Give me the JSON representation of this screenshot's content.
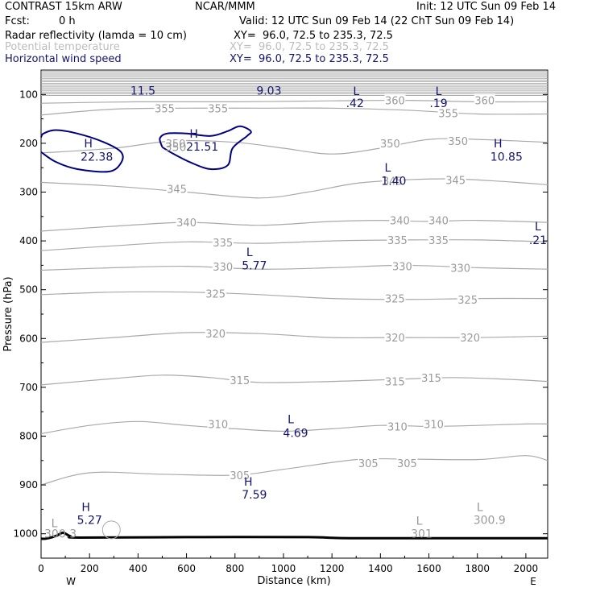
{
  "header": {
    "model": "CONTRAST 15km ARW",
    "center": "NCAR/MMM",
    "init": "Init: 12 UTC Sun 09 Feb 14",
    "fcst_label": "Fcst:",
    "fcst_value": "0 h",
    "valid": "Valid: 12 UTC Sun 09 Feb 14 (22 ChT Sun 09 Feb 14)"
  },
  "fields": [
    {
      "name": "Radar reflectivity (lamda = 10 cm)",
      "xy": "XY=  96.0, 72.5 to 235.3, 72.5",
      "color": "#000000"
    },
    {
      "name": "Potential temperature",
      "xy": "XY=  96.0, 72.5 to 235.3, 72.5",
      "color": "#bdbdbd"
    },
    {
      "name": "Horizontal wind speed",
      "xy": "XY=  96.0, 72.5 to 235.3, 72.5",
      "color": "#14146e"
    }
  ],
  "colors": {
    "theta": "#a9a9a9",
    "theta_label": "#9a9a9a",
    "wind": "#14146e",
    "reflectivity": "#000080",
    "axis": "#000000"
  },
  "chart_data": {
    "type": "cross-section",
    "xlabel": "Distance (km)",
    "ylabel": "Pressure (hPa)",
    "xlim": [
      0,
      2090
    ],
    "ylim": [
      1050,
      50
    ],
    "x_ticks": [
      0,
      200,
      400,
      600,
      800,
      1000,
      1200,
      1400,
      1600,
      1800,
      2000
    ],
    "y_ticks": [
      100,
      200,
      300,
      400,
      500,
      600,
      700,
      800,
      900,
      1000
    ],
    "end_labels": {
      "left": "W",
      "right": "E"
    },
    "theta_contours": [
      {
        "value": 305,
        "points": [
          [
            0,
            900
          ],
          [
            200,
            875
          ],
          [
            500,
            878
          ],
          [
            800,
            880
          ],
          [
            1000,
            868
          ],
          [
            1300,
            848
          ],
          [
            1500,
            847
          ],
          [
            1800,
            848
          ],
          [
            2000,
            840
          ],
          [
            2090,
            850
          ]
        ],
        "labels": [
          {
            "text": "305",
            "x": 820,
            "p": 880
          },
          {
            "text": "305",
            "x": 1350,
            "p": 855
          },
          {
            "text": "305",
            "x": 1510,
            "p": 855
          }
        ]
      },
      {
        "value": 310,
        "points": [
          [
            0,
            795
          ],
          [
            200,
            778
          ],
          [
            400,
            770
          ],
          [
            600,
            778
          ],
          [
            800,
            785
          ],
          [
            1000,
            790
          ],
          [
            1200,
            785
          ],
          [
            1400,
            778
          ],
          [
            1600,
            780
          ],
          [
            1800,
            778
          ],
          [
            2000,
            775
          ],
          [
            2090,
            775
          ]
        ],
        "labels": [
          {
            "text": "310",
            "x": 730,
            "p": 775
          },
          {
            "text": "310",
            "x": 1470,
            "p": 780
          },
          {
            "text": "310",
            "x": 1620,
            "p": 775
          }
        ]
      },
      {
        "value": 315,
        "points": [
          [
            0,
            695
          ],
          [
            300,
            682
          ],
          [
            500,
            675
          ],
          [
            700,
            680
          ],
          [
            900,
            690
          ],
          [
            1200,
            688
          ],
          [
            1500,
            683
          ],
          [
            1700,
            680
          ],
          [
            1900,
            683
          ],
          [
            2090,
            688
          ]
        ],
        "labels": [
          {
            "text": "315",
            "x": 820,
            "p": 685
          },
          {
            "text": "315",
            "x": 1460,
            "p": 688
          },
          {
            "text": "315",
            "x": 1610,
            "p": 680
          }
        ]
      },
      {
        "value": 320,
        "points": [
          [
            0,
            608
          ],
          [
            300,
            598
          ],
          [
            600,
            588
          ],
          [
            900,
            590
          ],
          [
            1200,
            598
          ],
          [
            1500,
            598
          ],
          [
            1800,
            598
          ],
          [
            2090,
            595
          ]
        ],
        "labels": [
          {
            "text": "320",
            "x": 720,
            "p": 590
          },
          {
            "text": "320",
            "x": 1460,
            "p": 598
          },
          {
            "text": "320",
            "x": 1770,
            "p": 598
          }
        ]
      },
      {
        "value": 325,
        "points": [
          [
            0,
            510
          ],
          [
            300,
            505
          ],
          [
            600,
            505
          ],
          [
            900,
            510
          ],
          [
            1200,
            518
          ],
          [
            1500,
            520
          ],
          [
            1800,
            518
          ],
          [
            2090,
            518
          ]
        ],
        "labels": [
          {
            "text": "325",
            "x": 720,
            "p": 508
          },
          {
            "text": "325",
            "x": 1460,
            "p": 518
          },
          {
            "text": "325",
            "x": 1760,
            "p": 520
          }
        ]
      },
      {
        "value": 330,
        "points": [
          [
            0,
            460
          ],
          [
            300,
            455
          ],
          [
            600,
            452
          ],
          [
            900,
            458
          ],
          [
            1200,
            455
          ],
          [
            1500,
            450
          ],
          [
            1800,
            455
          ],
          [
            2090,
            458
          ]
        ],
        "labels": [
          {
            "text": "330",
            "x": 750,
            "p": 453
          },
          {
            "text": "330",
            "x": 1490,
            "p": 452
          },
          {
            "text": "330",
            "x": 1730,
            "p": 455
          }
        ]
      },
      {
        "value": 335,
        "points": [
          [
            0,
            420
          ],
          [
            300,
            410
          ],
          [
            600,
            402
          ],
          [
            900,
            405
          ],
          [
            1200,
            400
          ],
          [
            1500,
            398
          ],
          [
            1800,
            398
          ],
          [
            2090,
            402
          ]
        ],
        "labels": [
          {
            "text": "335",
            "x": 750,
            "p": 403
          },
          {
            "text": "335",
            "x": 1470,
            "p": 398
          },
          {
            "text": "335",
            "x": 1640,
            "p": 398
          }
        ]
      },
      {
        "value": 340,
        "points": [
          [
            0,
            380
          ],
          [
            300,
            370
          ],
          [
            600,
            362
          ],
          [
            900,
            368
          ],
          [
            1200,
            360
          ],
          [
            1400,
            358
          ],
          [
            1600,
            360
          ],
          [
            1800,
            358
          ],
          [
            2090,
            362
          ]
        ],
        "labels": [
          {
            "text": "340",
            "x": 600,
            "p": 362
          },
          {
            "text": "340",
            "x": 1480,
            "p": 358
          },
          {
            "text": "340",
            "x": 1640,
            "p": 358
          }
        ]
      },
      {
        "value": 345,
        "points": [
          [
            0,
            280
          ],
          [
            300,
            288
          ],
          [
            600,
            300
          ],
          [
            900,
            312
          ],
          [
            1100,
            300
          ],
          [
            1300,
            282
          ],
          [
            1500,
            275
          ],
          [
            1700,
            273
          ],
          [
            1900,
            278
          ],
          [
            2090,
            285
          ]
        ],
        "labels": [
          {
            "text": "345",
            "x": 560,
            "p": 293
          },
          {
            "text": "345",
            "x": 1450,
            "p": 277
          },
          {
            "text": "345",
            "x": 1710,
            "p": 275
          }
        ]
      },
      {
        "value": 350,
        "points": [
          [
            0,
            220
          ],
          [
            300,
            210
          ],
          [
            550,
            195
          ],
          [
            800,
            198
          ],
          [
            1000,
            210
          ],
          [
            1200,
            222
          ],
          [
            1400,
            210
          ],
          [
            1600,
            192
          ],
          [
            1800,
            192
          ],
          [
            2090,
            198
          ]
        ],
        "labels": [
          {
            "text": "350",
            "x": 555,
            "p": 200
          },
          {
            "text": "350",
            "x": 1440,
            "p": 200
          },
          {
            "text": "350",
            "x": 1720,
            "p": 195
          }
        ]
      },
      {
        "value": 355,
        "points": [
          [
            0,
            142
          ],
          [
            300,
            130
          ],
          [
            600,
            128
          ],
          [
            900,
            128
          ],
          [
            1200,
            128
          ],
          [
            1500,
            132
          ],
          [
            1800,
            140
          ],
          [
            2090,
            140
          ]
        ],
        "labels": [
          {
            "text": "355",
            "x": 510,
            "p": 128
          },
          {
            "text": "355",
            "x": 730,
            "p": 128
          },
          {
            "text": "355",
            "x": 1680,
            "p": 138
          }
        ]
      },
      {
        "value": 360,
        "points": [
          [
            0,
            118
          ],
          [
            400,
            115
          ],
          [
            800,
            115
          ],
          [
            1200,
            113
          ],
          [
            1500,
            112
          ],
          [
            1800,
            115
          ],
          [
            2090,
            115
          ]
        ],
        "labels": [
          {
            "text": "360",
            "x": 1460,
            "p": 112
          },
          {
            "text": "360",
            "x": 1830,
            "p": 112
          }
        ]
      }
    ],
    "theta_top_lines": {
      "from": 53,
      "to": 102,
      "step": 3.5
    },
    "reflectivity_contours": [
      {
        "points": [
          [
            0,
            218
          ],
          [
            60,
            238
          ],
          [
            150,
            253
          ],
          [
            280,
            258
          ],
          [
            330,
            240
          ],
          [
            330,
            218
          ],
          [
            260,
            198
          ],
          [
            150,
            180
          ],
          [
            60,
            173
          ],
          [
            10,
            180
          ],
          [
            0,
            188
          ]
        ]
      },
      {
        "points": [
          [
            500,
            208
          ],
          [
            540,
            220
          ],
          [
            620,
            240
          ],
          [
            700,
            253
          ],
          [
            770,
            245
          ],
          [
            790,
            210
          ],
          [
            850,
            185
          ],
          [
            865,
            175
          ],
          [
            820,
            165
          ],
          [
            770,
            175
          ],
          [
            700,
            185
          ],
          [
            600,
            180
          ],
          [
            520,
            180
          ],
          [
            490,
            190
          ],
          [
            500,
            208
          ]
        ]
      }
    ],
    "surface": [
      [
        0,
        1010
      ],
      [
        20,
        1010
      ],
      [
        60,
        1005
      ],
      [
        90,
        998
      ],
      [
        120,
        1005
      ],
      [
        160,
        1008
      ],
      [
        600,
        1007
      ],
      [
        1100,
        1007
      ],
      [
        1300,
        1009
      ],
      [
        2090,
        1009
      ]
    ],
    "topo_circle": {
      "x": 290,
      "p": 992
    },
    "annotations": [
      {
        "text": "11.5",
        "x": 420,
        "p": 92,
        "kind": "wind"
      },
      {
        "text": "9.03",
        "x": 940,
        "p": 92,
        "kind": "wind"
      },
      {
        "text": "L",
        "x": 1300,
        "p": 93,
        "kind": "wind"
      },
      {
        "text": ".42",
        "x": 1295,
        "p": 118,
        "kind": "wind"
      },
      {
        "text": "L",
        "x": 1640,
        "p": 93,
        "kind": "wind"
      },
      {
        "text": ".19",
        "x": 1640,
        "p": 118,
        "kind": "wind"
      },
      {
        "text": "H",
        "x": 195,
        "p": 200,
        "kind": "wind"
      },
      {
        "text": "22.38",
        "x": 230,
        "p": 227,
        "kind": "wind"
      },
      {
        "text": "H",
        "x": 630,
        "p": 180,
        "kind": "wind"
      },
      {
        "text": "21.51",
        "x": 665,
        "p": 207,
        "kind": "wind"
      },
      {
        "text": "350",
        "x": 555,
        "p": 208,
        "kind": "theta"
      },
      {
        "text": "H",
        "x": 1885,
        "p": 200,
        "kind": "wind"
      },
      {
        "text": "10.85",
        "x": 1920,
        "p": 227,
        "kind": "wind"
      },
      {
        "text": "L",
        "x": 1430,
        "p": 250,
        "kind": "wind"
      },
      {
        "text": "1.40",
        "x": 1455,
        "p": 277,
        "kind": "wind"
      },
      {
        "text": "L",
        "x": 2050,
        "p": 370,
        "kind": "wind"
      },
      {
        "text": ".21",
        "x": 2050,
        "p": 398,
        "kind": "wind"
      },
      {
        "text": "L",
        "x": 860,
        "p": 423,
        "kind": "wind"
      },
      {
        "text": "5.77",
        "x": 880,
        "p": 450,
        "kind": "wind"
      },
      {
        "text": "L",
        "x": 1030,
        "p": 765,
        "kind": "wind"
      },
      {
        "text": "4.69",
        "x": 1050,
        "p": 793,
        "kind": "wind"
      },
      {
        "text": "H",
        "x": 855,
        "p": 893,
        "kind": "wind"
      },
      {
        "text": "7.59",
        "x": 880,
        "p": 920,
        "kind": "wind"
      },
      {
        "text": "H",
        "x": 185,
        "p": 945,
        "kind": "wind"
      },
      {
        "text": "5.27",
        "x": 200,
        "p": 972,
        "kind": "wind"
      },
      {
        "text": "L",
        "x": 55,
        "p": 978,
        "kind": "theta"
      },
      {
        "text": "300.3",
        "x": 80,
        "p": 1000,
        "kind": "theta"
      },
      {
        "text": "L",
        "x": 1560,
        "p": 973,
        "kind": "theta"
      },
      {
        "text": "301",
        "x": 1570,
        "p": 1000,
        "kind": "theta"
      },
      {
        "text": "L",
        "x": 1810,
        "p": 945,
        "kind": "theta"
      },
      {
        "text": "300.9",
        "x": 1850,
        "p": 972,
        "kind": "theta"
      }
    ]
  }
}
